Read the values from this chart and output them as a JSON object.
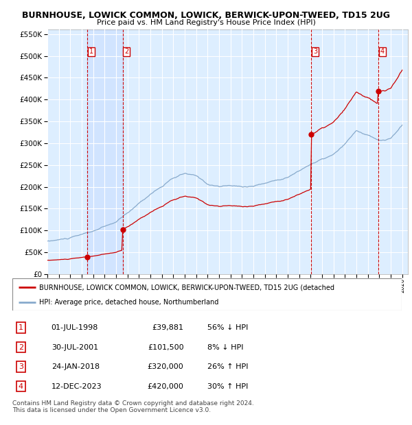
{
  "title": "BURNHOUSE, LOWICK COMMON, LOWICK, BERWICK-UPON-TWEED, TD15 2UG",
  "subtitle": "Price paid vs. HM Land Registry's House Price Index (HPI)",
  "footer": "Contains HM Land Registry data © Crown copyright and database right 2024.\nThis data is licensed under the Open Government Licence v3.0.",
  "legend_property": "BURNHOUSE, LOWICK COMMON, LOWICK, BERWICK-UPON-TWEED, TD15 2UG (detached",
  "legend_hpi": "HPI: Average price, detached house, Northumberland",
  "property_color": "#cc0000",
  "hpi_color": "#88aacc",
  "plot_bg_color": "#ddeeff",
  "shade_color": "#cce0ff",
  "ylim": [
    0,
    560000
  ],
  "yticks": [
    0,
    50000,
    100000,
    150000,
    200000,
    250000,
    300000,
    350000,
    400000,
    450000,
    500000,
    550000
  ],
  "xlim_start": 1995.0,
  "xlim_end": 2026.5,
  "transaction_dates": [
    1998.5,
    2001.58,
    2018.07,
    2023.95
  ],
  "transaction_prices": [
    39881,
    101500,
    320000,
    420000
  ],
  "transaction_labels": [
    "1",
    "2",
    "3",
    "4"
  ],
  "transaction_info": [
    {
      "num": "1",
      "date": "01-JUL-1998",
      "price": "£39,881",
      "hpi": "56% ↓ HPI"
    },
    {
      "num": "2",
      "date": "30-JUL-2001",
      "price": "£101,500",
      "hpi": "8% ↓ HPI"
    },
    {
      "num": "3",
      "date": "24-JAN-2018",
      "price": "£320,000",
      "hpi": "26% ↑ HPI"
    },
    {
      "num": "4",
      "date": "12-DEC-2023",
      "price": "£420,000",
      "hpi": "30% ↑ HPI"
    }
  ]
}
